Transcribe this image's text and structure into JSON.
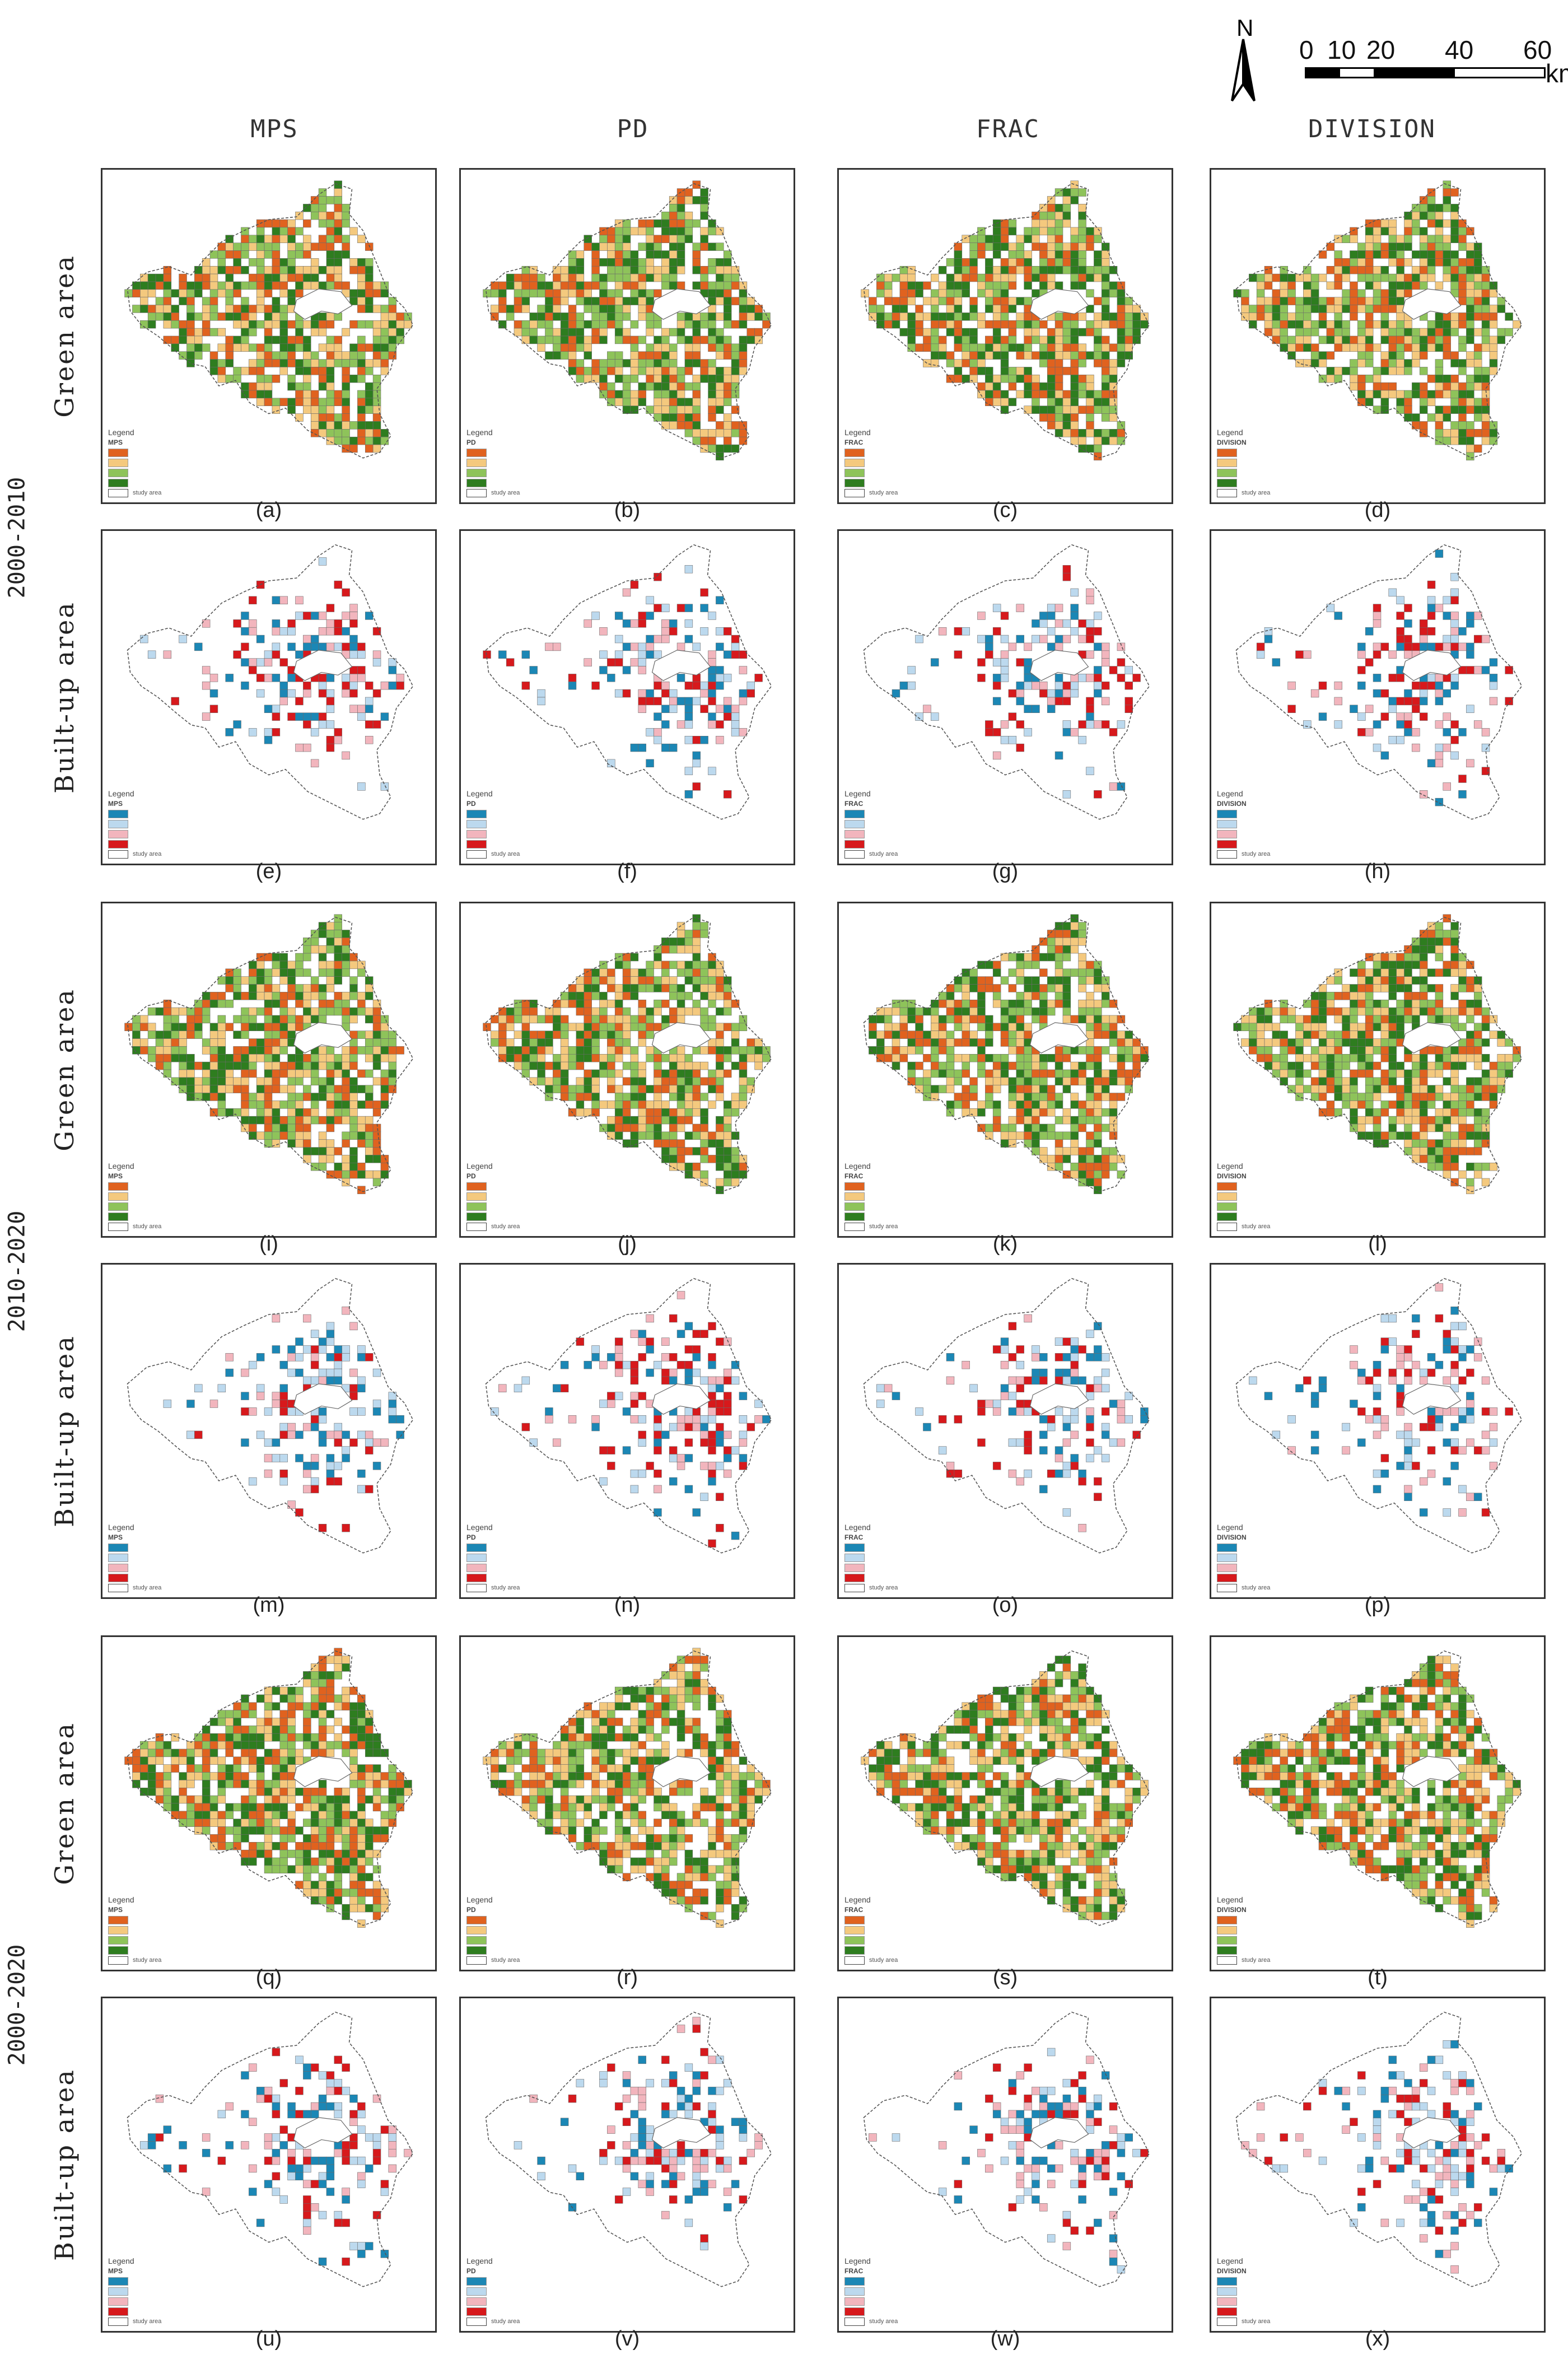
{
  "compass": {
    "label": "N"
  },
  "scale": {
    "ticks": [
      "0",
      "10",
      "20",
      "40",
      "60"
    ],
    "unit": "km"
  },
  "columns": [
    "MPS",
    "PD",
    "FRAC",
    "DIVISION"
  ],
  "periods": [
    "2000-2010",
    "2010-2020",
    "2000-2020"
  ],
  "area_types": [
    "Green area",
    "Built-up area"
  ],
  "legend": {
    "title": "Legend",
    "study_area": "study area",
    "variables": [
      "MPS",
      "PD",
      "FRAC",
      "DIVISION"
    ]
  },
  "palettes": {
    "green": [
      "#e0621f",
      "#f4c97e",
      "#8ec35a",
      "#2e7d1f"
    ],
    "built": [
      "#1b87b5",
      "#bcd9ee",
      "#f2b5bd",
      "#d7191c"
    ]
  },
  "sublabels": [
    "(a)",
    "(b)",
    "(c)",
    "(d)",
    "(e)",
    "(f)",
    "(g)",
    "(h)",
    "(i)",
    "(j)",
    "(k)",
    "(l)",
    "(m)",
    "(n)",
    "(o)",
    "(p)",
    "(q)",
    "(r)",
    "(s)",
    "(t)",
    "(u)",
    "(v)",
    "(w)",
    "(x)"
  ]
}
